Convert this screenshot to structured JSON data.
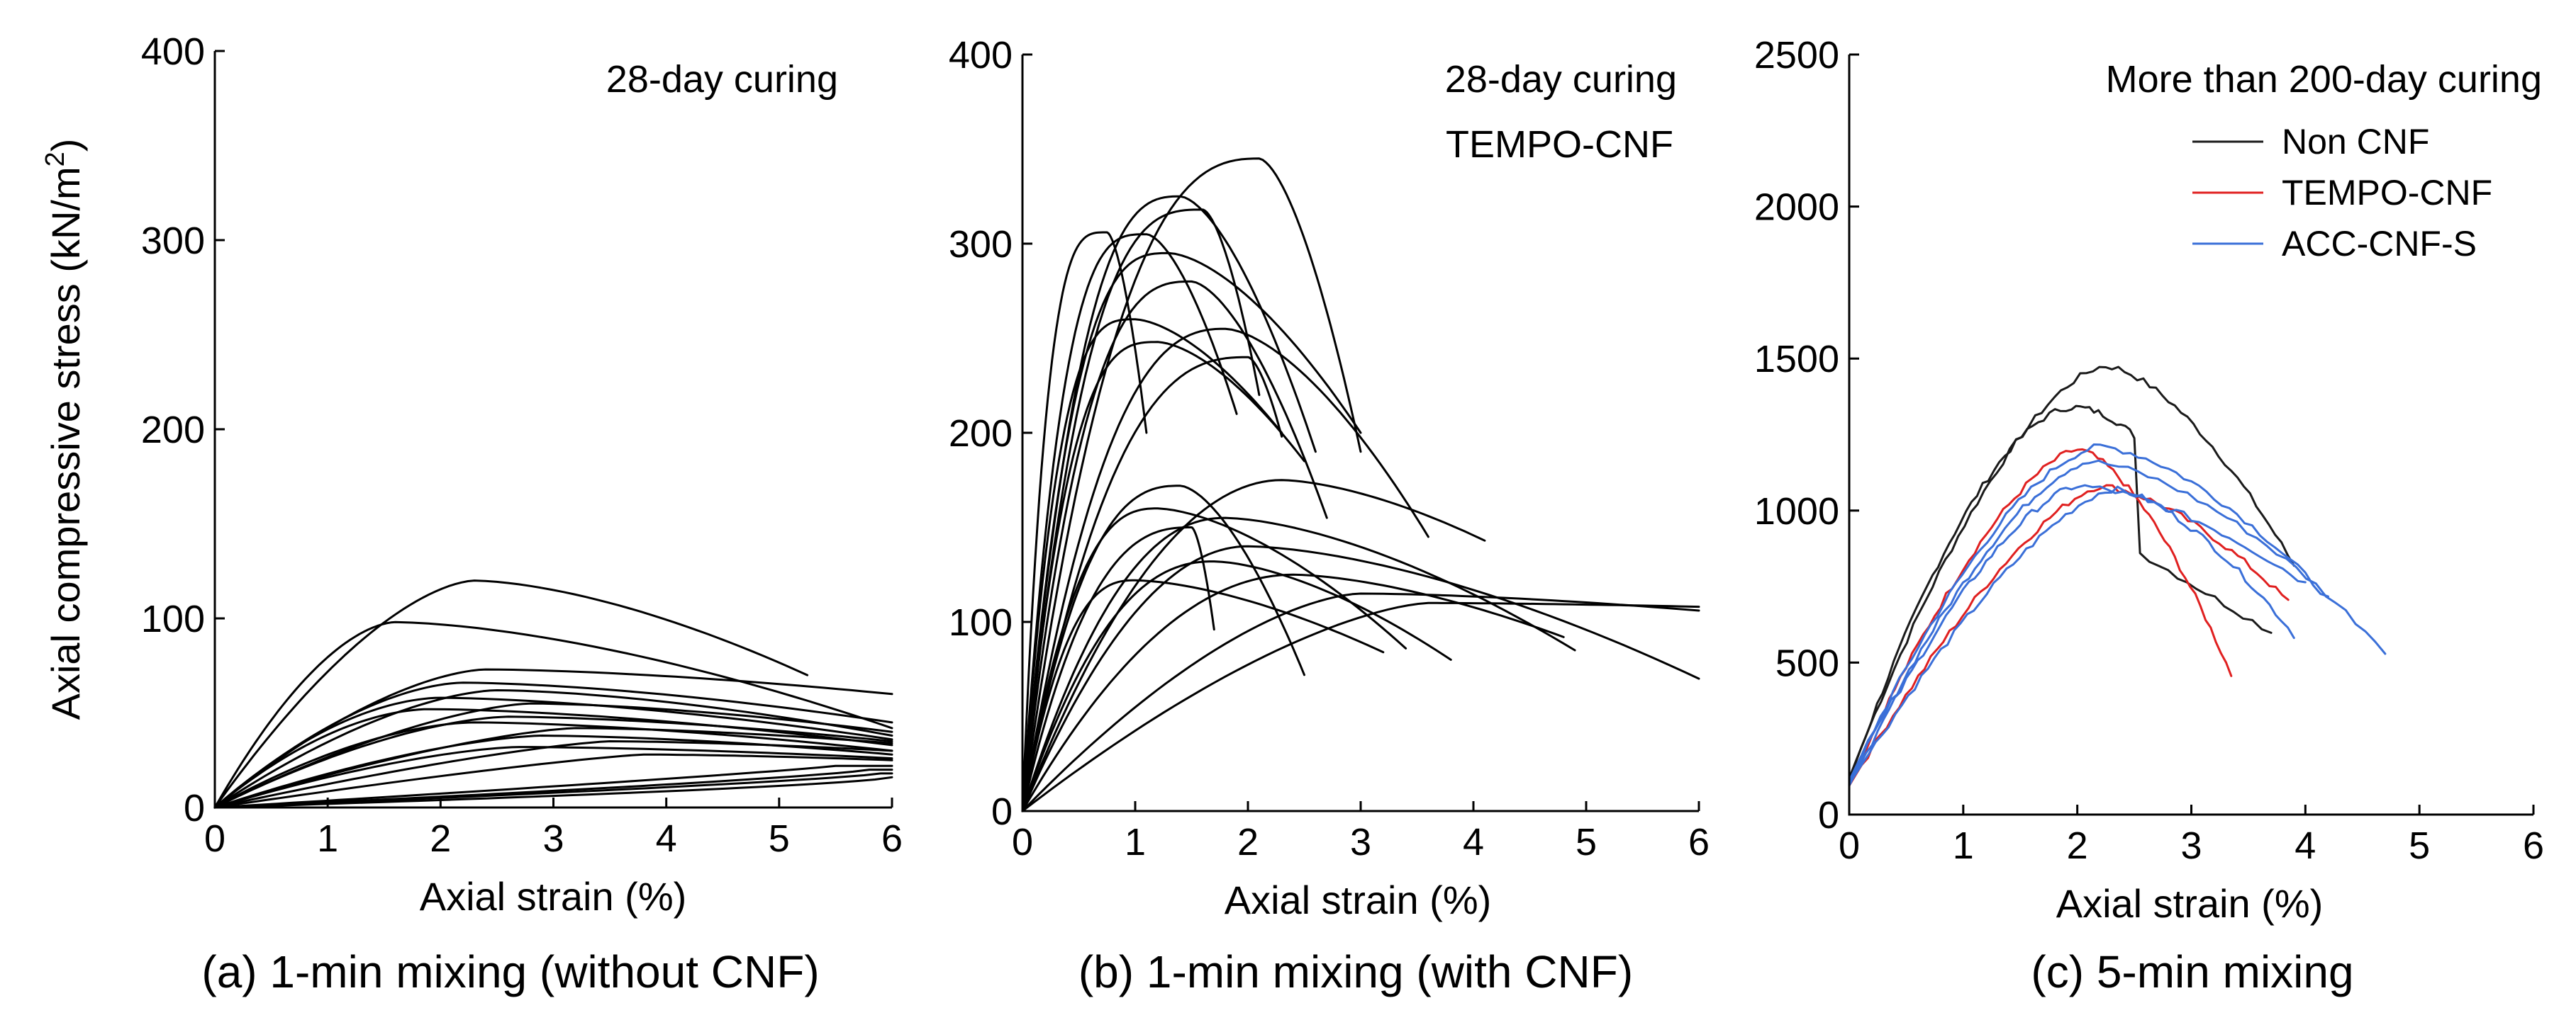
{
  "chart_data": [
    {
      "id": "a",
      "type": "line",
      "caption": "(a) 1-min mixing (without CNF)",
      "annotation": "28-day curing",
      "ylabel": "Axial compressive stress (kN/m",
      "ylabel_sup": "2",
      "ylabel_close": ")",
      "xlabel": "Axial strain (%)",
      "xlim": [
        0,
        6
      ],
      "ylim": [
        0,
        400
      ],
      "xticks": [
        "0",
        "1",
        "2",
        "3",
        "4",
        "5",
        "6"
      ],
      "yticks": [
        "0",
        "100",
        "200",
        "300",
        "400"
      ],
      "series_color": "#000000",
      "curves": [
        {
          "peak": [
            2.3,
            120
          ],
          "end": [
            5.25,
            70
          ],
          "k": 1.6
        },
        {
          "peak": [
            1.6,
            98
          ],
          "end": [
            6.0,
            42
          ],
          "k": 1.7
        },
        {
          "peak": [
            2.4,
            73
          ],
          "end": [
            6.0,
            60
          ],
          "k": 1.6
        },
        {
          "peak": [
            2.2,
            66
          ],
          "end": [
            6.0,
            45
          ],
          "k": 1.7
        },
        {
          "peak": [
            2.5,
            62
          ],
          "end": [
            6.0,
            38
          ],
          "k": 1.6
        },
        {
          "peak": [
            2.0,
            58
          ],
          "end": [
            6.0,
            36
          ],
          "k": 1.8
        },
        {
          "peak": [
            2.8,
            55
          ],
          "end": [
            6.0,
            40
          ],
          "k": 1.5
        },
        {
          "peak": [
            1.9,
            52
          ],
          "end": [
            6.0,
            33
          ],
          "k": 1.8
        },
        {
          "peak": [
            2.6,
            48
          ],
          "end": [
            6.0,
            35
          ],
          "k": 1.6
        },
        {
          "peak": [
            2.3,
            45
          ],
          "end": [
            6.0,
            30
          ],
          "k": 1.7
        },
        {
          "peak": [
            3.2,
            42
          ],
          "end": [
            6.0,
            34
          ],
          "k": 1.4
        },
        {
          "peak": [
            2.9,
            38
          ],
          "end": [
            6.0,
            28
          ],
          "k": 1.5
        },
        {
          "peak": [
            3.5,
            35
          ],
          "end": [
            6.0,
            30
          ],
          "k": 1.3
        },
        {
          "peak": [
            2.7,
            32
          ],
          "end": [
            6.0,
            26
          ],
          "k": 1.5
        },
        {
          "peak": [
            3.8,
            28
          ],
          "end": [
            6.0,
            25
          ],
          "k": 1.2
        },
        {
          "peak": [
            5.5,
            22
          ],
          "end": [
            6.0,
            22
          ],
          "k": 0.9
        },
        {
          "peak": [
            5.8,
            20
          ],
          "end": [
            6.0,
            20
          ],
          "k": 0.8
        },
        {
          "peak": [
            5.9,
            18
          ],
          "end": [
            6.0,
            18
          ],
          "k": 0.8
        },
        {
          "peak": [
            6.0,
            16
          ],
          "end": [
            6.0,
            16
          ],
          "k": 0.7
        }
      ]
    },
    {
      "id": "b",
      "type": "line",
      "caption": "(b) 1-min mixing (with CNF)",
      "annotation": "28-day curing",
      "annotation2": "TEMPO-CNF",
      "xlabel": "Axial strain (%)",
      "xlim": [
        0,
        6
      ],
      "ylim": [
        0,
        400
      ],
      "xticks": [
        "0",
        "1",
        "2",
        "3",
        "4",
        "5",
        "6"
      ],
      "yticks": [
        "0",
        "100",
        "200",
        "300",
        "400"
      ],
      "series_color": "#000000",
      "curves": [
        {
          "peak": [
            2.1,
            345
          ],
          "end": [
            3.0,
            190
          ],
          "k": 2.6
        },
        {
          "peak": [
            0.75,
            306
          ],
          "end": [
            1.1,
            200
          ],
          "k": 3.5
        },
        {
          "peak": [
            1.4,
            325
          ],
          "end": [
            2.6,
            190
          ],
          "k": 2.8
        },
        {
          "peak": [
            1.6,
            318
          ],
          "end": [
            2.1,
            220
          ],
          "k": 3.0
        },
        {
          "peak": [
            1.1,
            305
          ],
          "end": [
            1.9,
            210
          ],
          "k": 3.2
        },
        {
          "peak": [
            1.3,
            295
          ],
          "end": [
            3.0,
            200
          ],
          "k": 3.0
        },
        {
          "peak": [
            1.5,
            280
          ],
          "end": [
            2.7,
            155
          ],
          "k": 2.8
        },
        {
          "peak": [
            1.0,
            260
          ],
          "end": [
            2.3,
            200
          ],
          "k": 3.2
        },
        {
          "peak": [
            1.8,
            255
          ],
          "end": [
            3.6,
            145
          ],
          "k": 2.5
        },
        {
          "peak": [
            1.2,
            248
          ],
          "end": [
            2.5,
            185
          ],
          "k": 3.0
        },
        {
          "peak": [
            2.0,
            240
          ],
          "end": [
            2.3,
            198
          ],
          "k": 2.6
        },
        {
          "peak": [
            2.3,
            175
          ],
          "end": [
            4.1,
            143
          ],
          "k": 2.0
        },
        {
          "peak": [
            1.4,
            172
          ],
          "end": [
            2.5,
            72
          ],
          "k": 2.6
        },
        {
          "peak": [
            1.2,
            160
          ],
          "end": [
            3.4,
            86
          ],
          "k": 2.6
        },
        {
          "peak": [
            1.8,
            155
          ],
          "end": [
            4.9,
            85
          ],
          "k": 2.2
        },
        {
          "peak": [
            1.5,
            150
          ],
          "end": [
            1.7,
            96
          ],
          "k": 2.6
        },
        {
          "peak": [
            2.0,
            140
          ],
          "end": [
            6.0,
            70
          ],
          "k": 2.0
        },
        {
          "peak": [
            1.7,
            132
          ],
          "end": [
            3.8,
            80
          ],
          "k": 2.3
        },
        {
          "peak": [
            2.4,
            125
          ],
          "end": [
            4.8,
            92
          ],
          "k": 2.0
        },
        {
          "peak": [
            1.0,
            122
          ],
          "end": [
            3.2,
            84
          ],
          "k": 2.6
        },
        {
          "peak": [
            3.0,
            115
          ],
          "end": [
            6.0,
            106
          ],
          "k": 1.6
        },
        {
          "peak": [
            3.6,
            110
          ],
          "end": [
            6.0,
            108
          ],
          "k": 1.5
        }
      ]
    },
    {
      "id": "c",
      "type": "line",
      "caption": "(c) 5-min mixing",
      "annotation": "More than 200-day curing",
      "xlabel": "Axial strain (%)",
      "xlim": [
        0,
        6
      ],
      "ylim": [
        0,
        2500
      ],
      "xticks": [
        "0",
        "1",
        "2",
        "3",
        "4",
        "5",
        "6"
      ],
      "yticks": [
        "0",
        "500",
        "1000",
        "1500",
        "2000",
        "2500"
      ],
      "legend_position": "top-right",
      "series": [
        {
          "name": "Non CNF",
          "color": "#1a1a1a",
          "curves": [
            {
              "start": 120,
              "peak": [
                2.25,
                1475
              ],
              "end": [
                3.9,
                820
              ],
              "k": 1.6
            },
            {
              "start": 110,
              "peak": [
                1.95,
                1340
              ],
              "end": [
                3.7,
                600
              ],
              "k": 1.7,
              "drop": [
                2.55,
                860
              ]
            }
          ]
        },
        {
          "name": "TEMPO-CNF",
          "color": "#e02020",
          "curves": [
            {
              "start": 100,
              "peak": [
                2.0,
                1200
              ],
              "end": [
                3.35,
                460
              ],
              "k": 1.5
            },
            {
              "start": 95,
              "peak": [
                2.2,
                1080
              ],
              "end": [
                3.85,
                700
              ],
              "k": 1.4
            }
          ]
        },
        {
          "name": "ACC-CNF-S",
          "color": "#3a6fd8",
          "curves": [
            {
              "start": 110,
              "peak": [
                2.2,
                1210
              ],
              "end": [
                4.2,
                710
              ],
              "k": 1.6
            },
            {
              "start": 105,
              "peak": [
                2.1,
                1160
              ],
              "end": [
                4.7,
                540
              ],
              "k": 1.5
            },
            {
              "start": 100,
              "peak": [
                2.3,
                1070
              ],
              "end": [
                3.9,
                590
              ],
              "k": 1.4
            },
            {
              "start": 95,
              "peak": [
                2.0,
                1080
              ],
              "end": [
                4.0,
                760
              ],
              "k": 1.5
            }
          ]
        }
      ]
    }
  ]
}
